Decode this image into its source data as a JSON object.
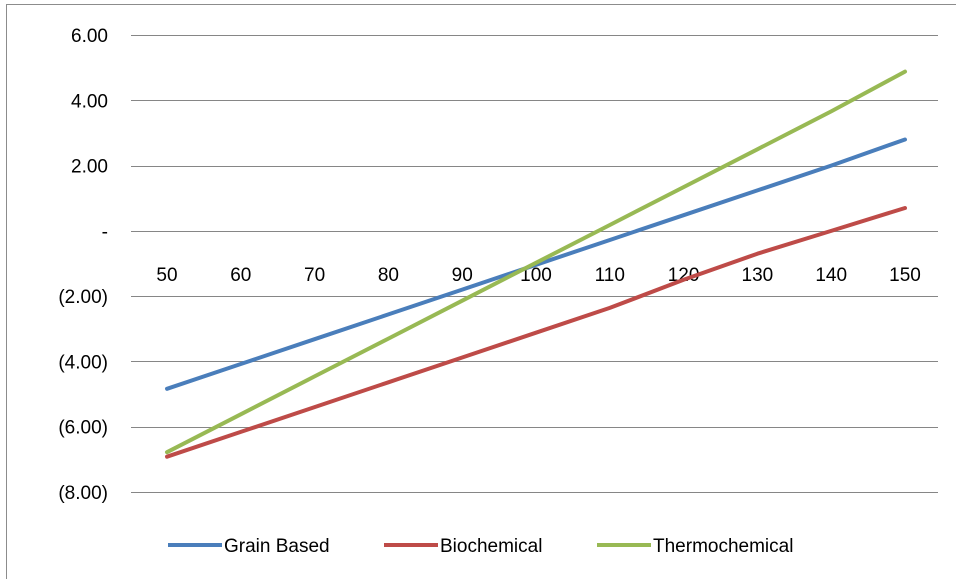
{
  "chart_data": {
    "type": "line",
    "title": "",
    "xlabel": "",
    "ylabel": "",
    "x": [
      50,
      60,
      70,
      80,
      90,
      100,
      110,
      120,
      130,
      140,
      150
    ],
    "x_tick_labels": [
      "50",
      "60",
      "70",
      "80",
      "90",
      "100",
      "110",
      "120",
      "130",
      "140",
      "150"
    ],
    "ylim": [
      -8,
      6
    ],
    "y_ticks": [
      6,
      4,
      2,
      0,
      -2,
      -4,
      -6,
      -8
    ],
    "y_tick_labels": [
      "6.00",
      "4.00",
      "2.00",
      "-",
      "(2.00)",
      "(4.00)",
      "(6.00)",
      "(8.00)"
    ],
    "grid": true,
    "legend_position": "bottom",
    "series": [
      {
        "name": "Grain Based",
        "color": "#4a7ebb",
        "values": [
          -4.84,
          -4.08,
          -3.32,
          -2.56,
          -1.8,
          -1.04,
          -0.28,
          0.48,
          1.24,
          2.0,
          2.8
        ]
      },
      {
        "name": "Biochemical",
        "color": "#be4b48",
        "values": [
          -6.92,
          -6.16,
          -5.4,
          -4.64,
          -3.88,
          -3.12,
          -2.36,
          -1.5,
          -0.7,
          0.0,
          0.7
        ]
      },
      {
        "name": "Thermochemical",
        "color": "#98b954",
        "values": [
          -6.78,
          -5.62,
          -4.46,
          -3.3,
          -2.14,
          -0.98,
          0.18,
          1.34,
          2.5,
          3.66,
          4.88
        ]
      }
    ]
  }
}
